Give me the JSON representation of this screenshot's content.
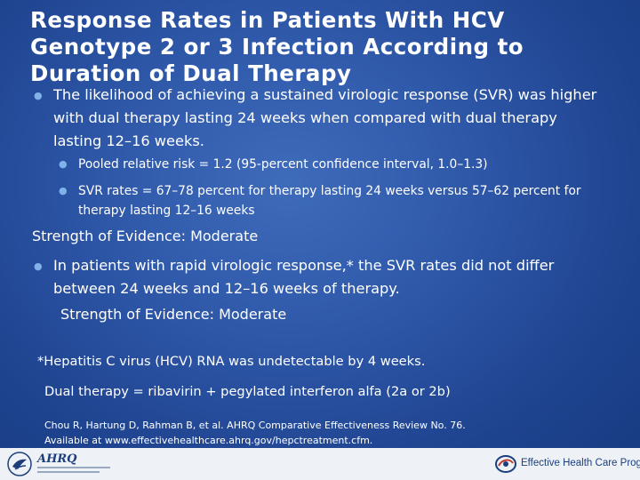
{
  "slide": {
    "title": "Response Rates in Patients With HCV Genotype 2 or 3 Infection According to Duration of Dual Therapy",
    "bullet1": "The likelihood of achieving a sustained virologic response (SVR) was higher with dual therapy lasting 24 weeks when compared with dual therapy lasting 12–16 weeks.",
    "subbullet1": "Pooled relative risk = 1.2 (95-percent confidence interval, 1.0–1.3)",
    "subbullet2": "SVR rates = 67–78 percent for therapy lasting 24 weeks versus 57–62 percent for therapy lasting 12–16 weeks",
    "strength1": "Strength of Evidence: Moderate",
    "bullet2": "In patients with rapid virologic response,* the SVR rates did not differ between 24 weeks and 12–16 weeks of therapy.",
    "strength2": "Strength of Evidence: Moderate",
    "footnote": "*Hepatitis C virus (HCV) RNA was undetectable by 4 weeks.",
    "dual_therapy": "Dual therapy = ribavirin + pegylated interferon alfa (2a or 2b)",
    "citation_line1": "Chou R, Hartung D, Rahman B, et al. AHRQ Comparative Effectiveness Review No. 76.",
    "citation_line2": "Available at www.effectivehealthcare.ahrq.gov/hepctreatment.cfm."
  },
  "footer": {
    "ahrq_logo_text": "AHRQ",
    "program_name": "Effective Health Care Program"
  },
  "colors": {
    "background": "#2e57a8",
    "bullet": "#7fb2ea",
    "footer": "#eef1f6"
  },
  "icons": {
    "bullet": "bullet-icon",
    "hhs": "hhs-eagle-icon",
    "ehc": "ehc-swirl-icon"
  }
}
